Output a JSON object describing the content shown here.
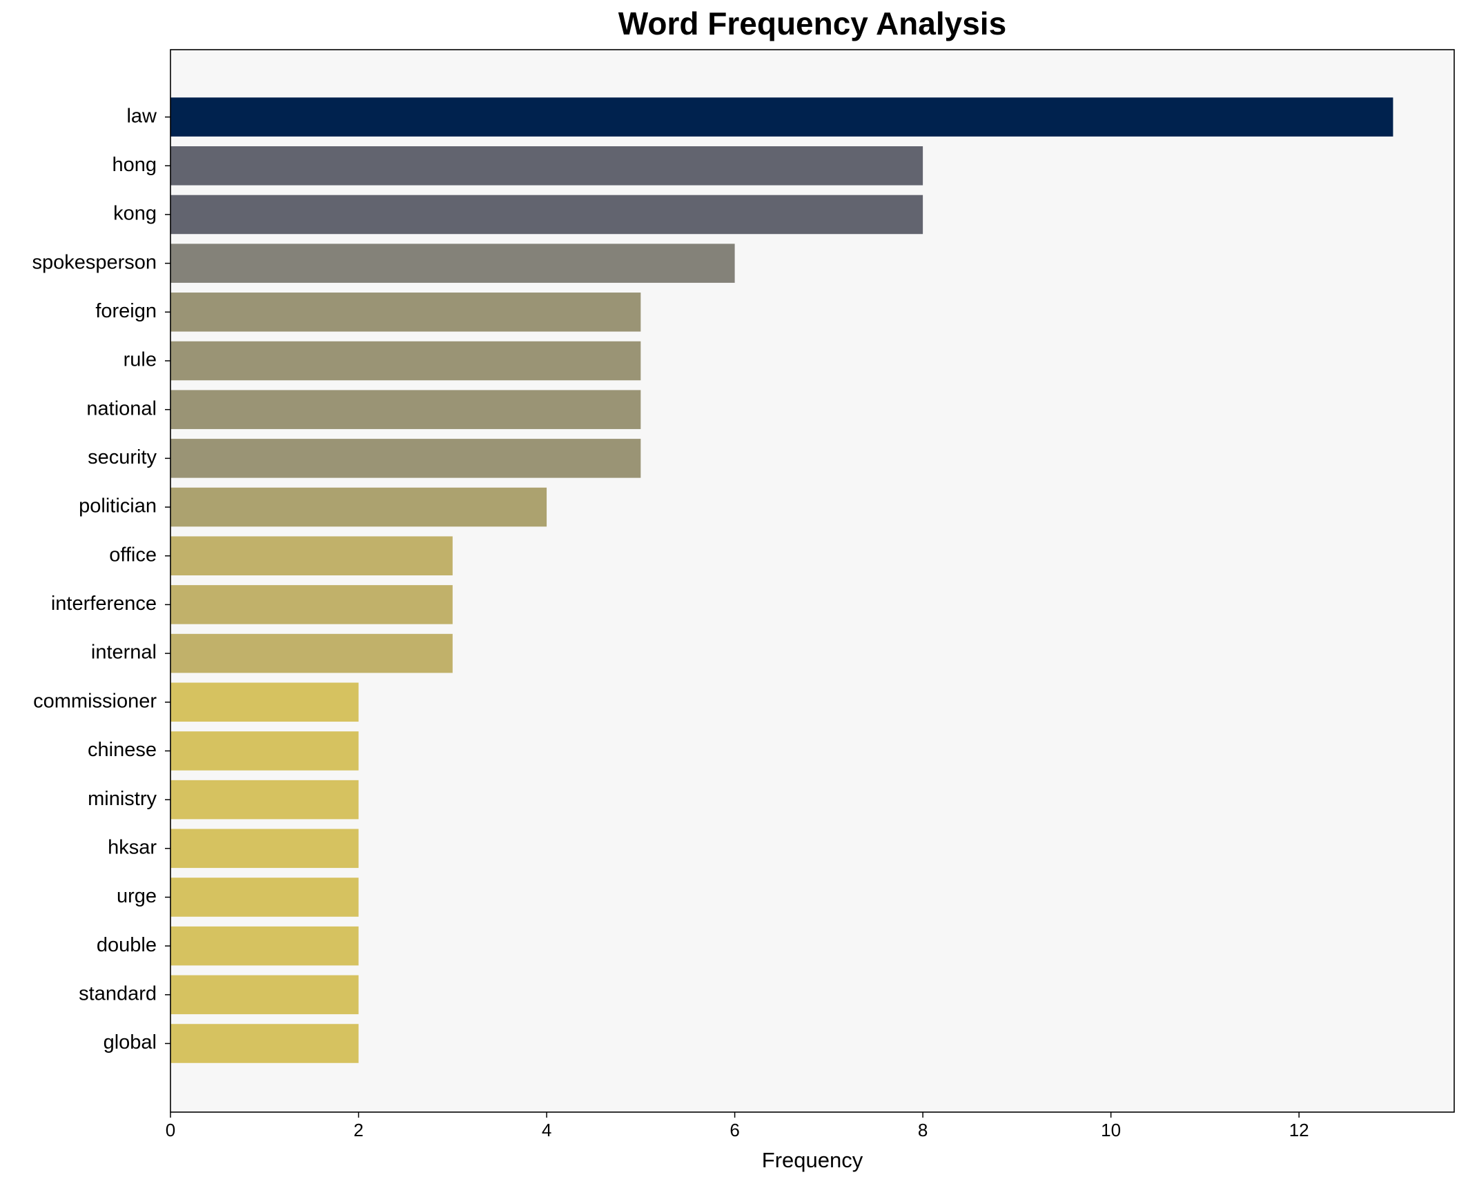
{
  "chart_data": {
    "type": "barh",
    "title": "Word Frequency Analysis",
    "x_label": "Frequency",
    "categories": [
      "law",
      "hong",
      "kong",
      "spokesperson",
      "foreign",
      "rule",
      "national",
      "security",
      "politician",
      "office",
      "interference",
      "internal",
      "commissioner",
      "chinese",
      "ministry",
      "hksar",
      "urge",
      "double",
      "standard",
      "global"
    ],
    "values": [
      13,
      8,
      8,
      6,
      5,
      5,
      5,
      5,
      4,
      3,
      3,
      3,
      2,
      2,
      2,
      2,
      2,
      2,
      2,
      2
    ],
    "colors": [
      "#00224e",
      "#62646f",
      "#62646f",
      "#848279",
      "#9a9475",
      "#9a9475",
      "#9a9475",
      "#9a9475",
      "#aca26f",
      "#c1b16a",
      "#c1b16a",
      "#c1b16a",
      "#d6c260",
      "#d6c260",
      "#d6c260",
      "#d6c260",
      "#d6c260",
      "#d6c260",
      "#d6c260",
      "#d6c260"
    ],
    "xlim": [
      0,
      13.65
    ],
    "xticks": [
      0,
      2,
      4,
      6,
      8,
      10,
      12
    ]
  }
}
